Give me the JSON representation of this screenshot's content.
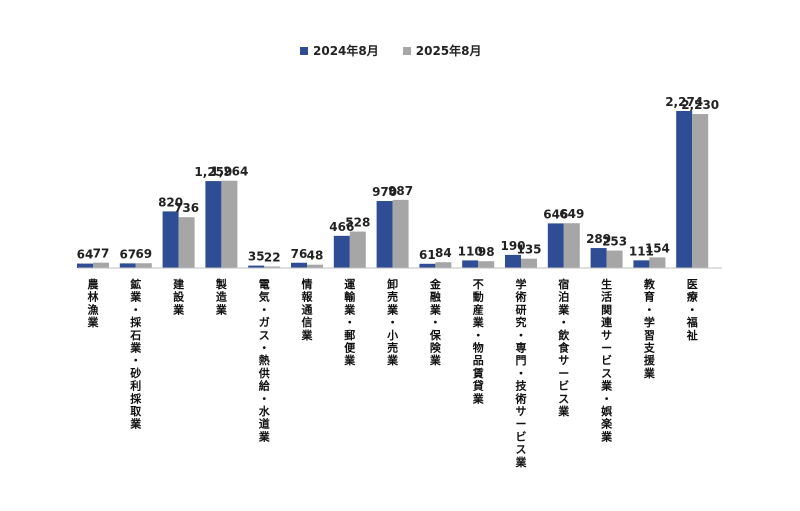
{
  "colors": {
    "series2024": "#2E4D94",
    "series2025": "#A6A6A6"
  },
  "chart_data": {
    "type": "bar",
    "title": "",
    "xlabel": "",
    "ylabel": "",
    "ylim": [
      0,
      2600
    ],
    "grid": false,
    "legend": "top-center",
    "categories": [
      "農林漁業",
      "鉱業・採石業・砂利採取業",
      "建設業",
      "製造業",
      "電気・ガス・熱供給・水道業",
      "情報通信業",
      "運輸業・郵便業",
      "卸売業・小売業",
      "金融業・保険業",
      "不動産業・物品賃貸業",
      "学術研究・専門・技術サービス業",
      "宿泊業・飲食サービス業",
      "生活関連サービス業・娯楽業",
      "教育・学習支援業",
      "医療・福祉"
    ],
    "series": [
      {
        "name": "2024年8月",
        "values": [
          64,
          67,
          820,
          1259,
          35,
          76,
          466,
          970,
          61,
          110,
          190,
          646,
          289,
          111,
          2274
        ]
      },
      {
        "name": "2025年8月",
        "values": [
          77,
          69,
          736,
          1264,
          22,
          48,
          528,
          987,
          84,
          98,
          135,
          649,
          253,
          154,
          2230
        ]
      }
    ]
  }
}
